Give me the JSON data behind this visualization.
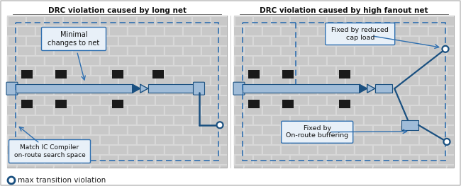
{
  "title_left": "DRC violation caused by long net",
  "title_right": "DRC violation caused by high fanout net",
  "legend_label": "max transition violation",
  "annotation_left_top": "Minimal\nchanges to net",
  "annotation_left_bottom": "Match IC Compiler\non-route search space",
  "annotation_right_top": "Fixed by reduced\ncap load",
  "annotation_right_bottom": "Fixed by\nOn-route buffering",
  "fig_bg": "#f0f0f0",
  "panel_bg": "#ffffff",
  "brick_color": "#c8c8c8",
  "mortar_color": "#d8d8d8",
  "blue_fill": "#a0bcd8",
  "blue_line": "#1a5080",
  "blue_dashed": "#3070b0",
  "black_cell": "#1a1a1a",
  "callout_bg": "#e8f0f8",
  "callout_border": "#3070b0",
  "title_color": "#111111",
  "legend_text_color": "#222222"
}
